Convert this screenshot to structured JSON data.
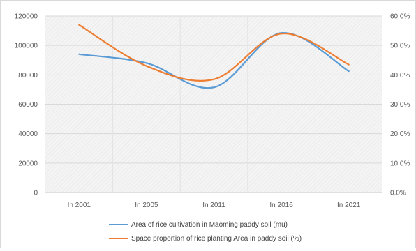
{
  "chart_data": {
    "type": "line",
    "categories": [
      "In 2001",
      "In 2005",
      "In 2011",
      "In 2016",
      "In 2021"
    ],
    "y_left": {
      "range": [
        0,
        120000
      ],
      "ticks": [
        "0",
        "20000",
        "40000",
        "60000",
        "80000",
        "100000",
        "120000"
      ]
    },
    "y_right": {
      "range": [
        0,
        60
      ],
      "ticks": [
        "0.0%",
        "10.0%",
        "20.0%",
        "30.0%",
        "40.0%",
        "50.0%",
        "60.0%"
      ]
    },
    "series": [
      {
        "name": "Area of rice cultivation in Maoming paddy soil (mu)",
        "axis": "left",
        "color": "#5b9bd5",
        "values": [
          94000,
          88000,
          71500,
          108500,
          82500
        ]
      },
      {
        "name": "Space proportion of rice planting Area in paddy soil (%)",
        "axis": "right",
        "color": "#ed7d31",
        "values": [
          57.0,
          43.0,
          38.5,
          54.0,
          43.5
        ]
      }
    ],
    "grid": true,
    "plot_background": "hatched",
    "legend": "bottom"
  }
}
